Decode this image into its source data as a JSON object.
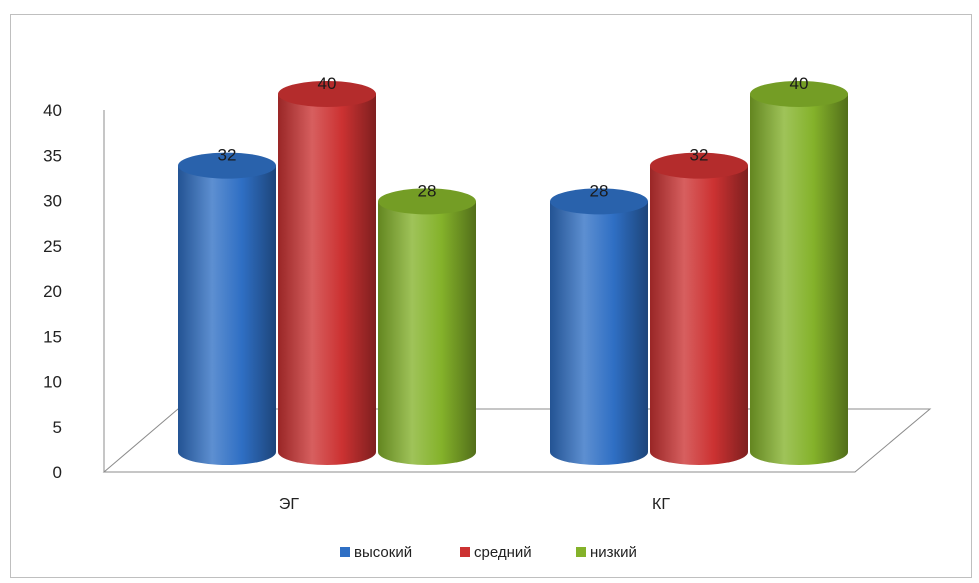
{
  "chart_data": {
    "type": "bar",
    "categories": [
      "ЭГ",
      "КГ"
    ],
    "series": [
      {
        "name": "высокий",
        "values": [
          32,
          28
        ],
        "color": "#2f6fc4"
      },
      {
        "name": "средний",
        "values": [
          40,
          32
        ],
        "color": "#cc3232"
      },
      {
        "name": "низкий",
        "values": [
          28,
          40
        ],
        "color": "#84b22a"
      }
    ],
    "ylim": [
      0,
      40
    ],
    "yticks": [
      0,
      5,
      10,
      15,
      20,
      25,
      30,
      35,
      40
    ],
    "data_labels": true,
    "legend": "bottom",
    "style": "3d-cylinder",
    "grid": false
  }
}
